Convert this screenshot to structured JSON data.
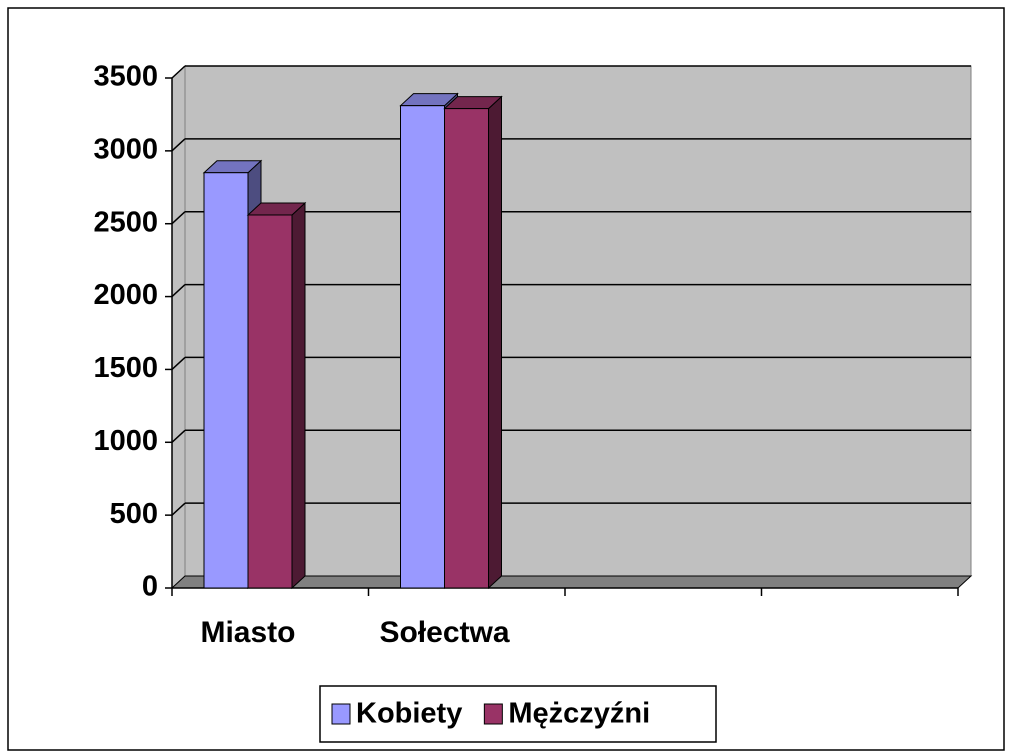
{
  "chart_data": {
    "type": "bar3d",
    "categories": [
      "Miasto",
      "Sołectwa",
      null,
      null
    ],
    "series": [
      {
        "name": "Kobiety",
        "color": "#9999ff",
        "values": [
          2850,
          3310,
          null,
          null
        ]
      },
      {
        "name": "Mężczyźni",
        "color": "#993366",
        "values": [
          2560,
          3290,
          null,
          null
        ]
      }
    ],
    "ylim": [
      0,
      3500
    ],
    "yticks": [
      0,
      500,
      1000,
      1500,
      2000,
      2500,
      3000,
      3500
    ],
    "grid": true,
    "legend": "bottom"
  }
}
